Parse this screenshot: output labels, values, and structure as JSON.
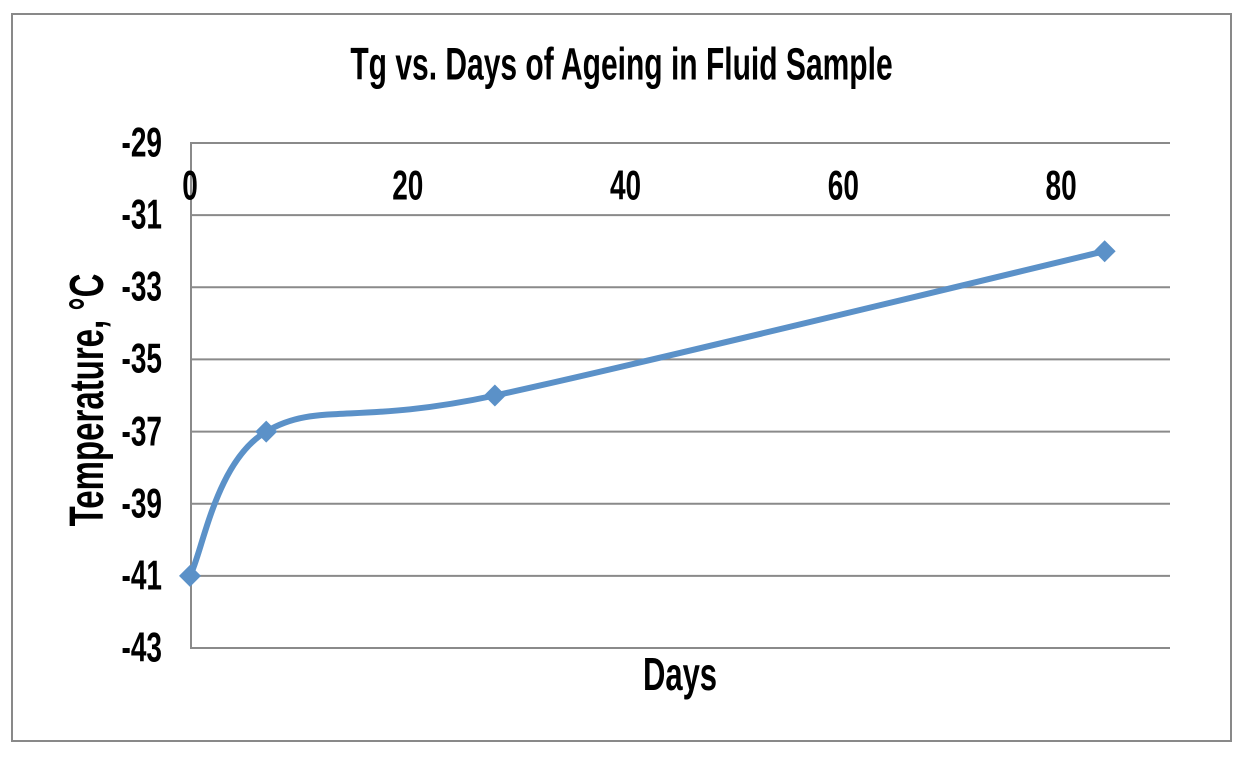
{
  "chart_data": {
    "type": "line",
    "smooth": true,
    "title": "Tg vs. Days of Ageing in Fluid Sample",
    "xlabel": "Days",
    "ylabel": "Temperature, °C",
    "x": [
      0,
      7,
      28,
      84
    ],
    "y": [
      -41,
      -37,
      -36,
      -32
    ],
    "xlim": [
      0,
      90
    ],
    "ylim": [
      -43,
      -29
    ],
    "xticks": [
      0,
      20,
      40,
      60,
      80
    ],
    "yticks": [
      -29,
      -31,
      -33,
      -35,
      -37,
      -39,
      -41,
      -43
    ],
    "grid": true,
    "legend": false,
    "marker": "diamond",
    "marker_size": 11,
    "line_width": 6,
    "line_color": "#5B91C8",
    "grid_color": "#8A8A8A",
    "axis_color": "#8A8A8A",
    "frame_border_color": "#898989",
    "text_color": "#000000",
    "background_color": "#FFFFFF"
  }
}
